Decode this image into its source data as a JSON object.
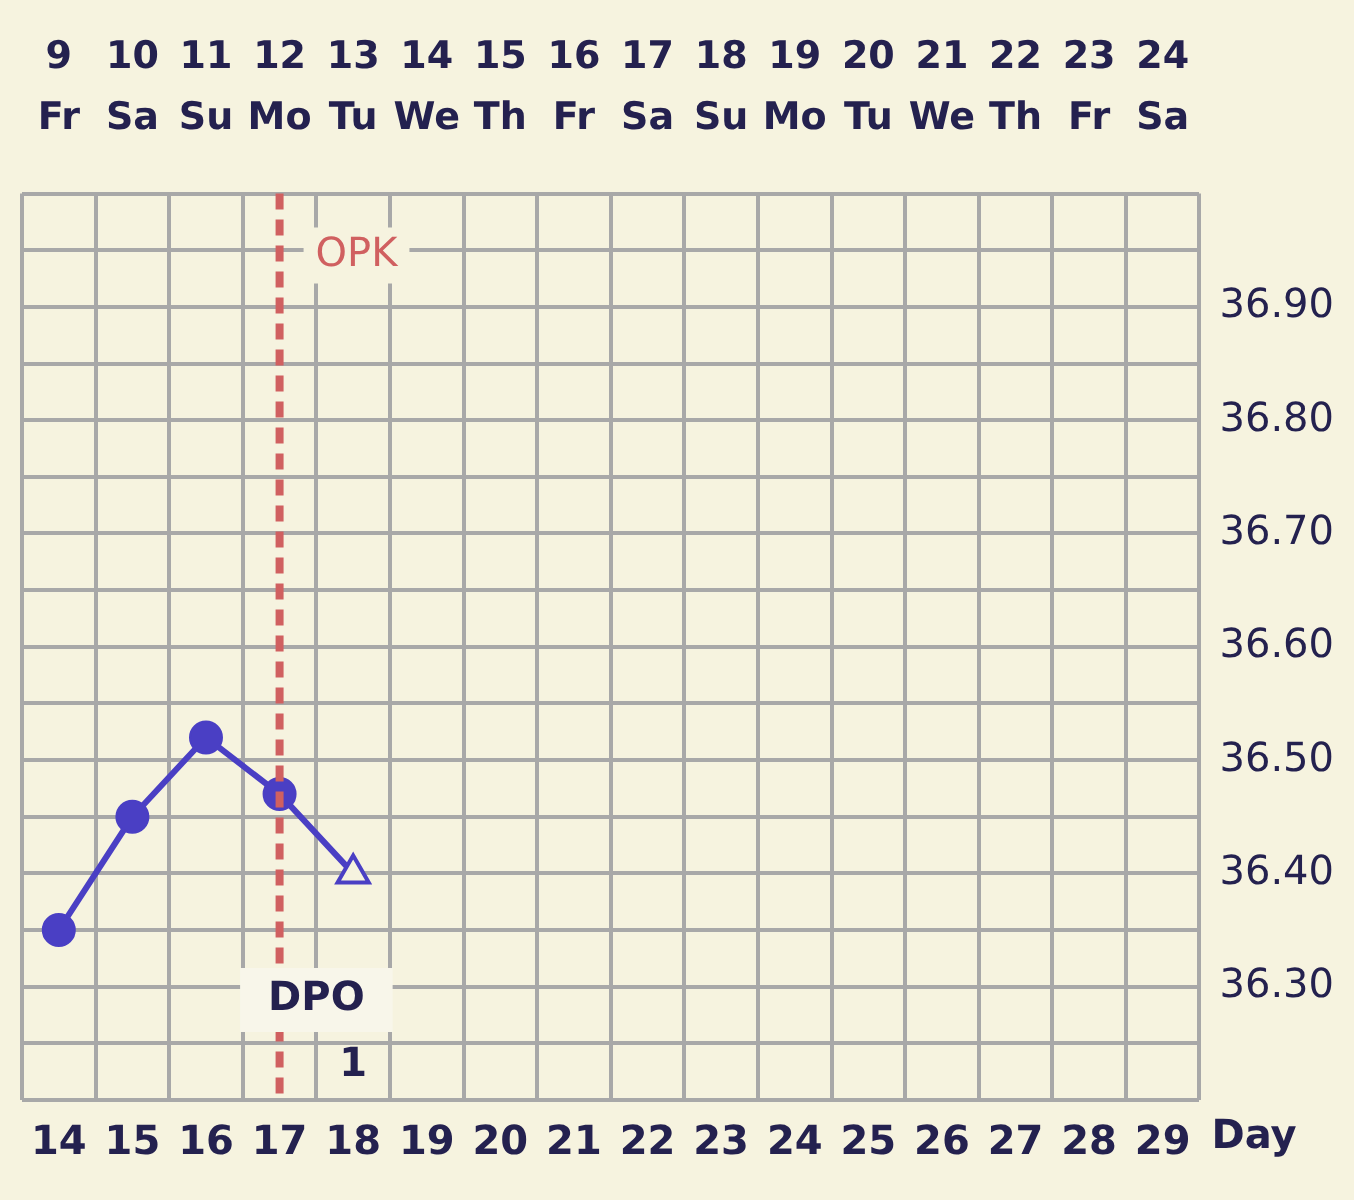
{
  "chart_data": {
    "type": "line",
    "xlabel": "Day",
    "categories": [
      "14",
      "15",
      "16",
      "17",
      "18",
      "19",
      "20",
      "21",
      "22",
      "23",
      "24",
      "25",
      "26",
      "27",
      "28",
      "29"
    ],
    "series": [
      {
        "color": "#4a3fc4",
        "values": [
          36.35,
          36.45,
          36.52,
          36.47,
          36.4,
          null,
          null,
          null,
          null,
          null,
          null,
          null,
          null,
          null,
          null,
          null
        ],
        "marker": [
          "circle",
          "circle",
          "circle",
          "circle",
          "triangle"
        ]
      }
    ],
    "ylim": [
      36.2,
      37.0
    ],
    "yticks": [
      {
        "value": 36.2,
        "label": null
      },
      {
        "value": 36.25,
        "label": null
      },
      {
        "value": 36.3,
        "label": "36.30"
      },
      {
        "value": 36.35,
        "label": null
      },
      {
        "value": 36.4,
        "label": "36.40"
      },
      {
        "value": 36.45,
        "label": null
      },
      {
        "value": 36.5,
        "label": "36.50"
      },
      {
        "value": 36.55,
        "label": null
      },
      {
        "value": 36.6,
        "label": "36.60"
      },
      {
        "value": 36.65,
        "label": null
      },
      {
        "value": 36.7,
        "label": "36.70"
      },
      {
        "value": 36.75,
        "label": null
      },
      {
        "value": 36.8,
        "label": "36.80"
      },
      {
        "value": 36.85,
        "label": null
      },
      {
        "value": 36.9,
        "label": "36.90"
      },
      {
        "value": 36.95,
        "label": null
      },
      {
        "value": 37.0,
        "label": null
      }
    ],
    "x2lim": [
      8.5,
      24.5
    ],
    "x2ticks": [
      {
        "value": 9,
        "label": "9\nFr"
      },
      {
        "value": 10,
        "label": "10\nSa"
      },
      {
        "value": 11,
        "label": "11\nSu"
      },
      {
        "value": 12,
        "label": "12\nMo"
      },
      {
        "value": 13,
        "label": "13\nTu"
      },
      {
        "value": 14,
        "label": "14\nWe"
      },
      {
        "value": 15,
        "label": "15\nTh"
      },
      {
        "value": 16,
        "label": "16\nFr"
      },
      {
        "value": 17,
        "label": "17\nSa"
      },
      {
        "value": 18,
        "label": "18\nSu"
      },
      {
        "value": 19,
        "label": "19\nMo"
      },
      {
        "value": 20,
        "label": "20\nTu"
      },
      {
        "value": 21,
        "label": "21\nWe"
      },
      {
        "value": 22,
        "label": "22\nTh"
      },
      {
        "value": 23,
        "label": "23\nFr"
      },
      {
        "value": 24,
        "label": "24\nSa"
      }
    ],
    "ref_lines": [
      {
        "axis": "x",
        "value": "17",
        "label": "OPK",
        "color": "#d06060",
        "line_style": "dashed"
      }
    ],
    "annotations": [
      "DPO",
      "1"
    ],
    "grid": true,
    "legend": false,
    "line_style": "solid"
  }
}
